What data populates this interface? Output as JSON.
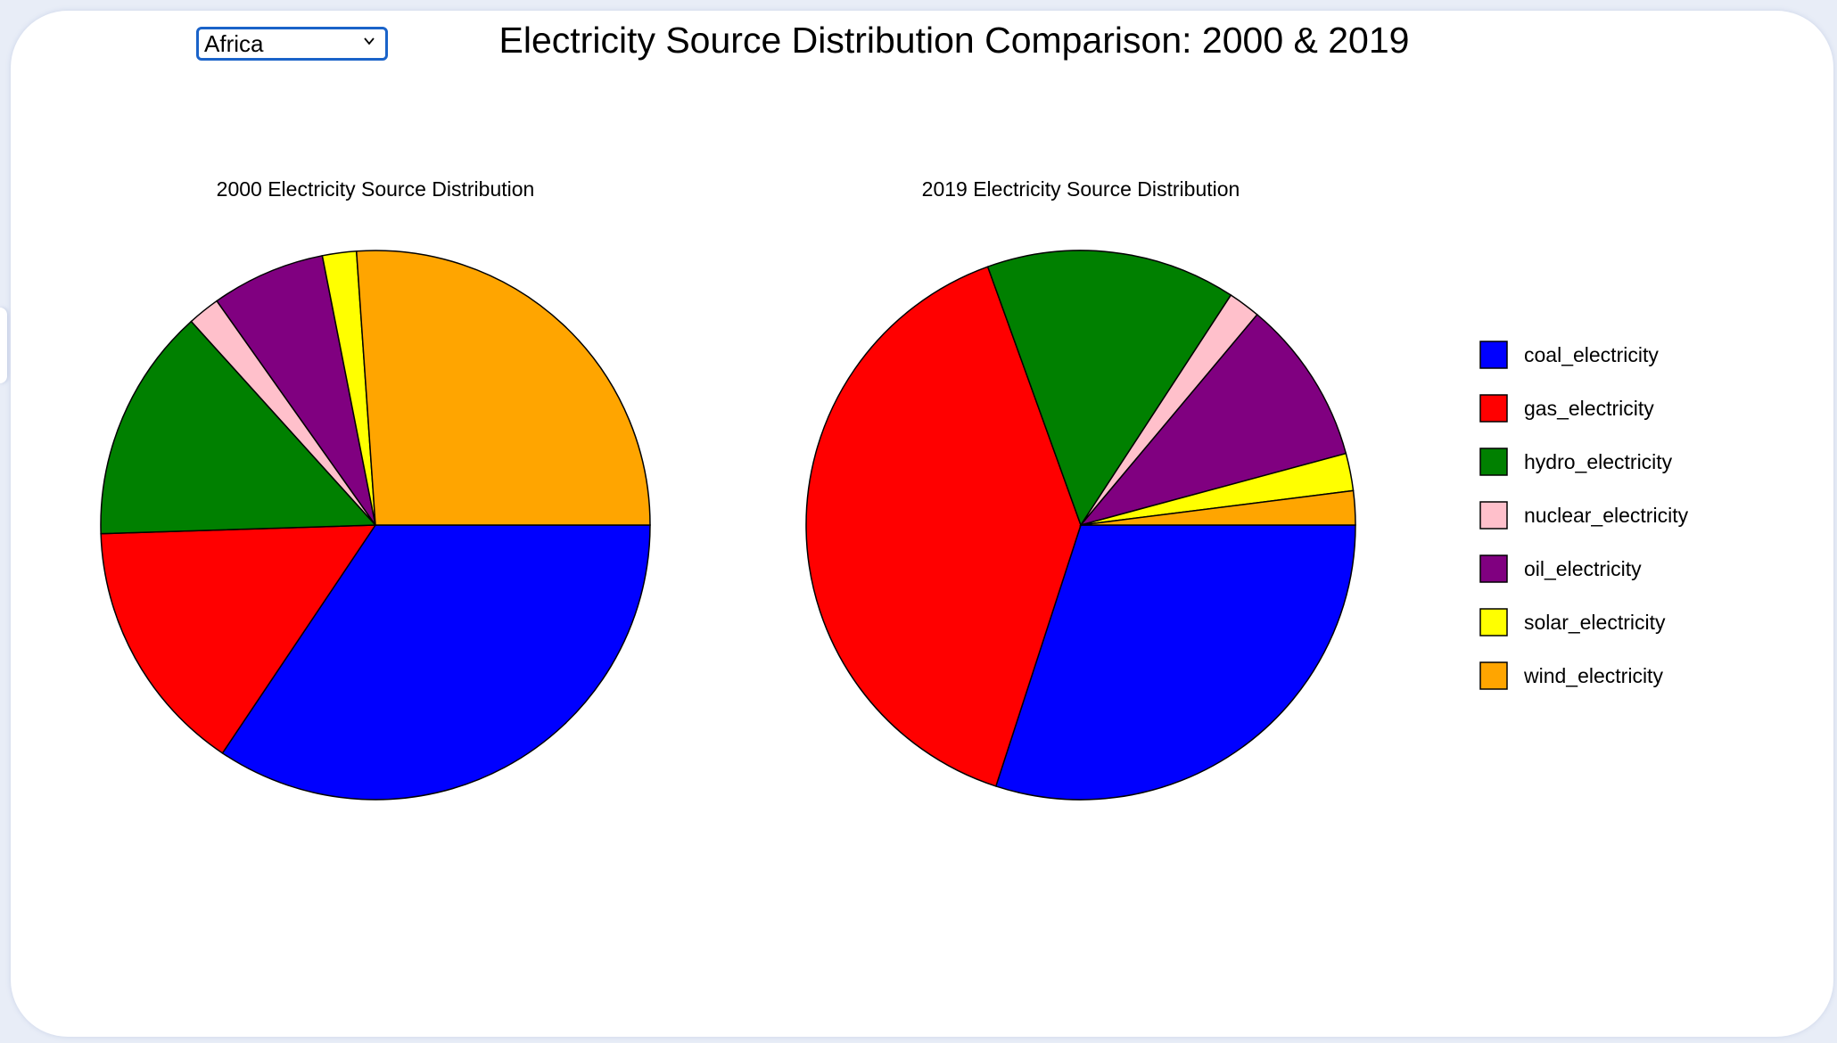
{
  "page": {
    "title": "Electricity Source Distribution Comparison: 2000 & 2019"
  },
  "region_select": {
    "selected": "Africa",
    "options": [
      "Africa"
    ]
  },
  "colors": {
    "coal_electricity": "#0000ff",
    "gas_electricity": "#ff0000",
    "hydro_electricity": "#008000",
    "nuclear_electricity": "#ffc0cb",
    "oil_electricity": "#800080",
    "solar_electricity": "#ffff00",
    "wind_electricity": "#ffa500"
  },
  "chart_data": [
    {
      "type": "pie",
      "title": "2000 Electricity Source Distribution",
      "categories": [
        "coal_electricity",
        "gas_electricity",
        "hydro_electricity",
        "nuclear_electricity",
        "oil_electricity",
        "solar_electricity",
        "wind_electricity"
      ],
      "values": [
        34.4,
        15.1,
        13.8,
        1.9,
        6.7,
        2.0,
        26.1
      ],
      "legend_position": "right"
    },
    {
      "type": "pie",
      "title": "2019 Electricity Source Distribution",
      "categories": [
        "coal_electricity",
        "gas_electricity",
        "hydro_electricity",
        "nuclear_electricity",
        "oil_electricity",
        "solar_electricity",
        "wind_electricity"
      ],
      "values": [
        30.0,
        39.5,
        14.7,
        1.9,
        9.7,
        2.2,
        2.0
      ],
      "legend_position": "right"
    }
  ],
  "legend": {
    "items": [
      "coal_electricity",
      "gas_electricity",
      "hydro_electricity",
      "nuclear_electricity",
      "oil_electricity",
      "solar_electricity",
      "wind_electricity"
    ]
  }
}
